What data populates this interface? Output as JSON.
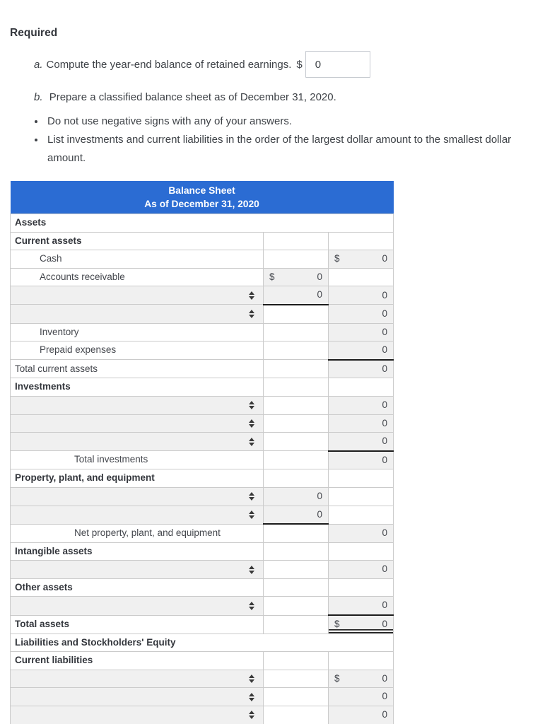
{
  "page": {
    "heading": "Required",
    "item_a": {
      "prefix": "a.",
      "text": "Compute the year-end balance of retained earnings.",
      "currency": "$",
      "input_value": "0"
    },
    "item_b": {
      "prefix": "b.",
      "text": "Prepare a classified balance sheet as of December 31, 2020."
    },
    "bullets": [
      "Do not use negative signs with any of your answers.",
      "List investments and current liabilities in the order of the largest dollar amount to the smallest dollar amount."
    ]
  },
  "table": {
    "title": "Balance Sheet",
    "subtitle": "As of December 31, 2020",
    "rows": [
      {
        "type": "section",
        "label": "Assets"
      },
      {
        "type": "label",
        "label": "Current assets",
        "bold": true,
        "c2": null,
        "c3": null
      },
      {
        "type": "item",
        "label": "Cash",
        "indent": 1,
        "c2": null,
        "c3": {
          "v": "0",
          "dollar": "$",
          "bg": "gray"
        }
      },
      {
        "type": "item",
        "label": "Accounts receivable",
        "indent": 1,
        "c2": {
          "v": "0",
          "dollar": "$",
          "bg": "gray"
        },
        "c3": null
      },
      {
        "type": "select",
        "c2": {
          "v": "0",
          "bg": "gray",
          "u": 1
        },
        "c3": {
          "v": "0",
          "bg": "gray"
        }
      },
      {
        "type": "select",
        "c2": {
          "v": "",
          "bg": "white"
        },
        "c3": {
          "v": "0",
          "bg": "gray"
        }
      },
      {
        "type": "item",
        "label": "Inventory",
        "indent": 1,
        "c2": null,
        "c3": {
          "v": "0",
          "bg": "gray"
        }
      },
      {
        "type": "item",
        "label": "Prepaid expenses",
        "indent": 1,
        "c2": null,
        "c3": {
          "v": "0",
          "bg": "gray",
          "u": 1
        }
      },
      {
        "type": "item",
        "label": "Total current assets",
        "indent": 0,
        "c2": null,
        "c3": {
          "v": "0",
          "bg": "gray"
        }
      },
      {
        "type": "label",
        "label": "Investments",
        "bold": true,
        "c2": null,
        "c3": null
      },
      {
        "type": "select",
        "c2": {
          "v": "",
          "bg": "white"
        },
        "c3": {
          "v": "0",
          "bg": "gray"
        }
      },
      {
        "type": "select",
        "c2": {
          "v": "",
          "bg": "white"
        },
        "c3": {
          "v": "0",
          "bg": "gray"
        }
      },
      {
        "type": "select",
        "c2": {
          "v": "",
          "bg": "white"
        },
        "c3": {
          "v": "0",
          "bg": "gray",
          "u": 1
        }
      },
      {
        "type": "item",
        "label": "Total investments",
        "indent": 2,
        "c2": null,
        "c3": {
          "v": "0",
          "bg": "gray"
        }
      },
      {
        "type": "label",
        "label": "Property, plant, and equipment",
        "bold": true,
        "c2": null,
        "c3": null
      },
      {
        "type": "select",
        "c2": {
          "v": "0",
          "bg": "gray"
        },
        "c3": {
          "v": "",
          "bg": "white"
        }
      },
      {
        "type": "select",
        "c2": {
          "v": "0",
          "bg": "gray",
          "u": 1
        },
        "c3": {
          "v": "",
          "bg": "white"
        }
      },
      {
        "type": "item",
        "label": "Net property, plant, and equipment",
        "indent": 2,
        "c2": null,
        "c3": {
          "v": "0",
          "bg": "gray"
        }
      },
      {
        "type": "label",
        "label": "Intangible assets",
        "bold": true,
        "c2": null,
        "c3": null
      },
      {
        "type": "select",
        "c2": {
          "v": "",
          "bg": "white"
        },
        "c3": {
          "v": "0",
          "bg": "gray"
        }
      },
      {
        "type": "label",
        "label": "Other assets",
        "bold": true,
        "c2": null,
        "c3": null
      },
      {
        "type": "select",
        "c2": {
          "v": "",
          "bg": "white"
        },
        "c3": {
          "v": "0",
          "bg": "gray",
          "u": 1
        }
      },
      {
        "type": "item",
        "label": "Total assets",
        "bold": true,
        "indent": 0,
        "c2": null,
        "c3": {
          "v": "0",
          "dollar": "$",
          "bg": "gray",
          "u": 2
        }
      },
      {
        "type": "section",
        "label": "Liabilities and Stockholders' Equity"
      },
      {
        "type": "label",
        "label": "Current liabilities",
        "bold": true,
        "c2": null,
        "c3": null
      },
      {
        "type": "select",
        "c2": {
          "v": "",
          "bg": "white"
        },
        "c3": {
          "v": "0",
          "dollar": "$",
          "bg": "gray"
        }
      },
      {
        "type": "select",
        "c2": {
          "v": "",
          "bg": "white"
        },
        "c3": {
          "v": "0",
          "bg": "gray"
        }
      },
      {
        "type": "select",
        "c2": {
          "v": "",
          "bg": "white"
        },
        "c3": {
          "v": "0",
          "bg": "gray"
        }
      },
      {
        "type": "plain",
        "label": "",
        "c2": null,
        "c3": null
      }
    ]
  },
  "colors": {
    "header_blue": "#2b6cd3",
    "cell_gray": "#f0f0f0",
    "grid_border": "#cbcbcb",
    "underline_black": "#1c1c1c"
  }
}
